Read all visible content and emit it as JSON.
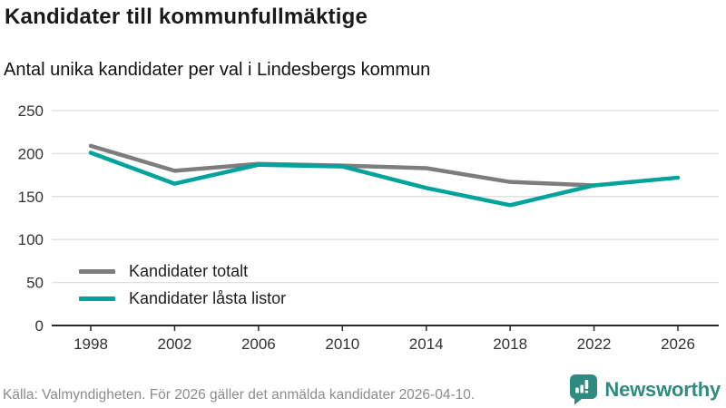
{
  "header": {
    "title": "Kandidater till kommunfullmäktige",
    "subtitle": "Antal unika kandidater per val i Lindesbergs kommun"
  },
  "chart_data": {
    "type": "line",
    "title": "Kandidater till kommunfullmäktige",
    "subtitle": "Antal unika kandidater per val i Lindesbergs kommun",
    "categories": [
      1998,
      2002,
      2006,
      2010,
      2014,
      2018,
      2022,
      2026
    ],
    "series": [
      {
        "name": "Kandidater totalt",
        "color": "#7d7d7d",
        "values": [
          209,
          180,
          188,
          186,
          183,
          167,
          163,
          null
        ]
      },
      {
        "name": "Kandidater låsta listor",
        "color": "#00a39b",
        "values": [
          201,
          165,
          187,
          185,
          160,
          140,
          163,
          172
        ]
      }
    ],
    "xlabel": "",
    "ylabel": "",
    "ylim": [
      0,
      250
    ],
    "yticks": [
      0,
      50,
      100,
      150,
      200,
      250
    ],
    "grid": "horizontal",
    "legend_position": "inside-bottom-left"
  },
  "footer": {
    "source": "Källa: Valmyndigheten. För 2026 gäller det anmälda kandidater 2026-04-10.",
    "brand": "Newsworthy"
  },
  "colors": {
    "axis": "#2b2b2b",
    "gridline": "#dedede",
    "tick_label": "#333333",
    "source_text": "#8c8c8c",
    "brand_teal": "#2f8b80",
    "series_total": "#7d7d7d",
    "series_locked": "#00a39b"
  }
}
